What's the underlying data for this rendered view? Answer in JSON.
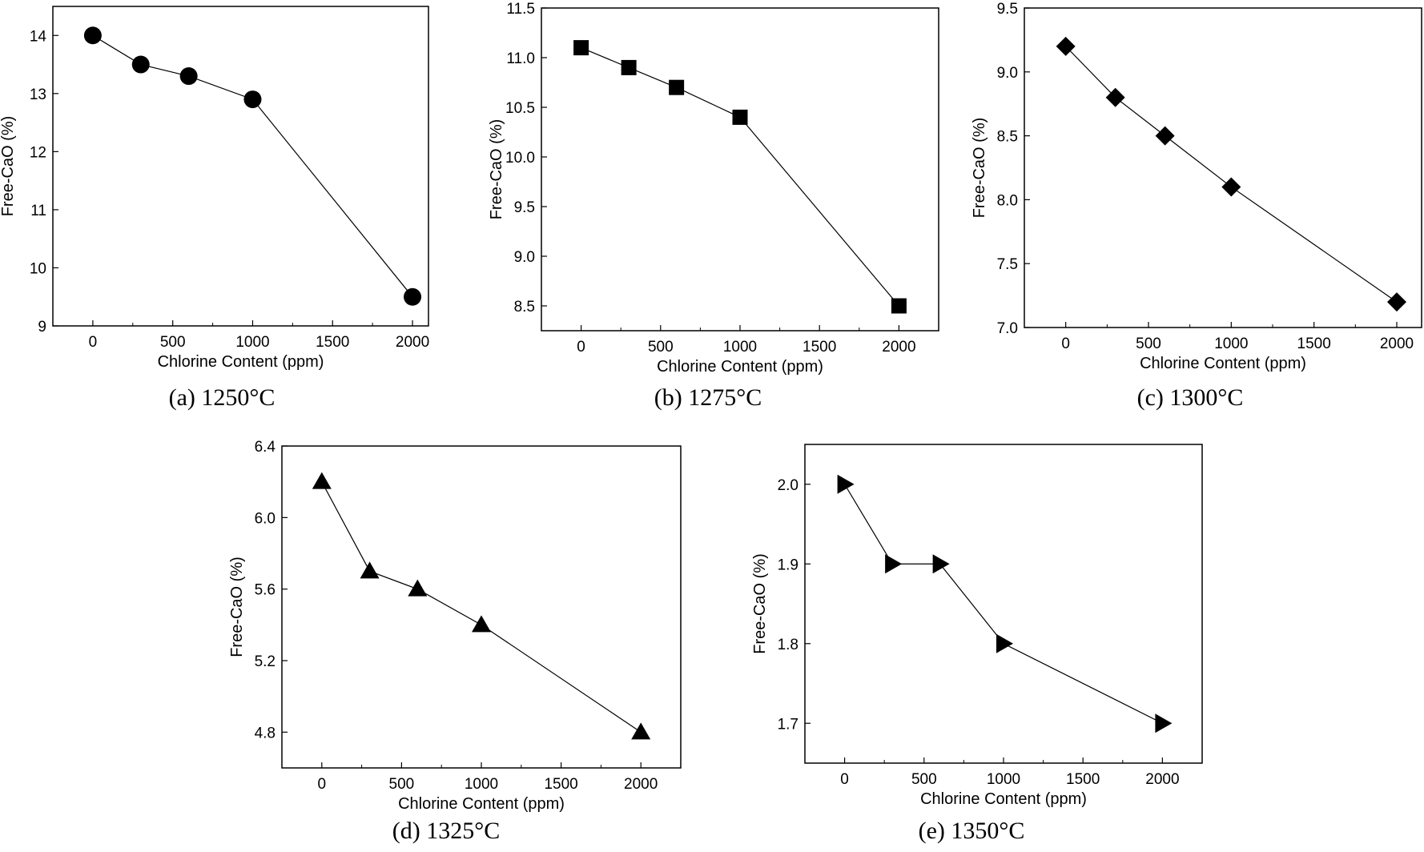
{
  "chart_data": [
    {
      "type": "line",
      "caption": "(a) 1250°C",
      "xlabel": "Chlorine Content (ppm)",
      "ylabel": "Free-CaO (%)",
      "marker": "circle",
      "xlim": [
        -250,
        2100
      ],
      "ylim": [
        9,
        14.5
      ],
      "xticks": [
        0,
        500,
        1000,
        1500,
        2000
      ],
      "yticks": [
        9,
        10,
        11,
        12,
        13,
        14
      ],
      "ytick_labels": [
        "9",
        "10",
        "11",
        "12",
        "13",
        "14"
      ],
      "grid": false,
      "x": [
        0,
        300,
        600,
        1000,
        2000
      ],
      "values": [
        14.0,
        13.5,
        13.3,
        12.9,
        9.5
      ]
    },
    {
      "type": "line",
      "caption": "(b) 1275°C",
      "xlabel": "Chlorine Content (ppm)",
      "ylabel": "Free-CaO (%)",
      "marker": "square",
      "xlim": [
        -250,
        2250
      ],
      "ylim": [
        8.25,
        11.5
      ],
      "xticks": [
        0,
        500,
        1000,
        1500,
        2000
      ],
      "yticks": [
        8.5,
        9.0,
        9.5,
        10.0,
        10.5,
        11.0,
        11.5
      ],
      "ytick_labels": [
        "8.5",
        "9.0",
        "9.5",
        "10.0",
        "10.5",
        "11.0",
        "11.5"
      ],
      "grid": false,
      "x": [
        0,
        300,
        600,
        1000,
        2000
      ],
      "values": [
        11.1,
        10.9,
        10.7,
        10.4,
        8.5
      ]
    },
    {
      "type": "line",
      "caption": "(c) 1300°C",
      "xlabel": "Chlorine Content (ppm)",
      "ylabel": "Free-CaO (%)",
      "marker": "diamond",
      "xlim": [
        -250,
        2150
      ],
      "ylim": [
        7.0,
        9.5
      ],
      "xticks": [
        0,
        500,
        1000,
        1500,
        2000
      ],
      "yticks": [
        7.0,
        7.5,
        8.0,
        8.5,
        9.0,
        9.5
      ],
      "ytick_labels": [
        "7.0",
        "7.5",
        "8.0",
        "8.5",
        "9.0",
        "9.5"
      ],
      "grid": false,
      "x": [
        0,
        300,
        600,
        1000,
        2000
      ],
      "values": [
        9.2,
        8.8,
        8.5,
        8.1,
        7.2
      ]
    },
    {
      "type": "line",
      "caption": "(d) 1325°C",
      "xlabel": "Chlorine Content (ppm)",
      "ylabel": "Free-CaO (%)",
      "marker": "triangle-up",
      "xlim": [
        -250,
        2250
      ],
      "ylim": [
        4.6,
        6.4
      ],
      "xticks": [
        0,
        500,
        1000,
        1500,
        2000
      ],
      "yticks": [
        4.8,
        5.2,
        5.6,
        6.0,
        6.4
      ],
      "ytick_labels": [
        "4.8",
        "5.2",
        "5.6",
        "6.0",
        "6.4"
      ],
      "grid": false,
      "x": [
        0,
        300,
        600,
        1000,
        2000
      ],
      "values": [
        6.2,
        5.7,
        5.6,
        5.4,
        4.8
      ]
    },
    {
      "type": "line",
      "caption": "(e) 1350°C",
      "xlabel": "Chlorine Content (ppm)",
      "ylabel": "Free-CaO (%)",
      "marker": "triangle-right",
      "xlim": [
        -250,
        2250
      ],
      "ylim": [
        1.65,
        2.05
      ],
      "xticks": [
        0,
        500,
        1000,
        1500,
        2000
      ],
      "yticks": [
        1.7,
        1.8,
        1.9,
        2.0
      ],
      "ytick_labels": [
        "1.7",
        "1.8",
        "1.9",
        "2.0"
      ],
      "grid": false,
      "x": [
        0,
        300,
        600,
        1000,
        2000
      ],
      "values": [
        2.0,
        1.9,
        1.9,
        1.8,
        1.7
      ]
    }
  ]
}
